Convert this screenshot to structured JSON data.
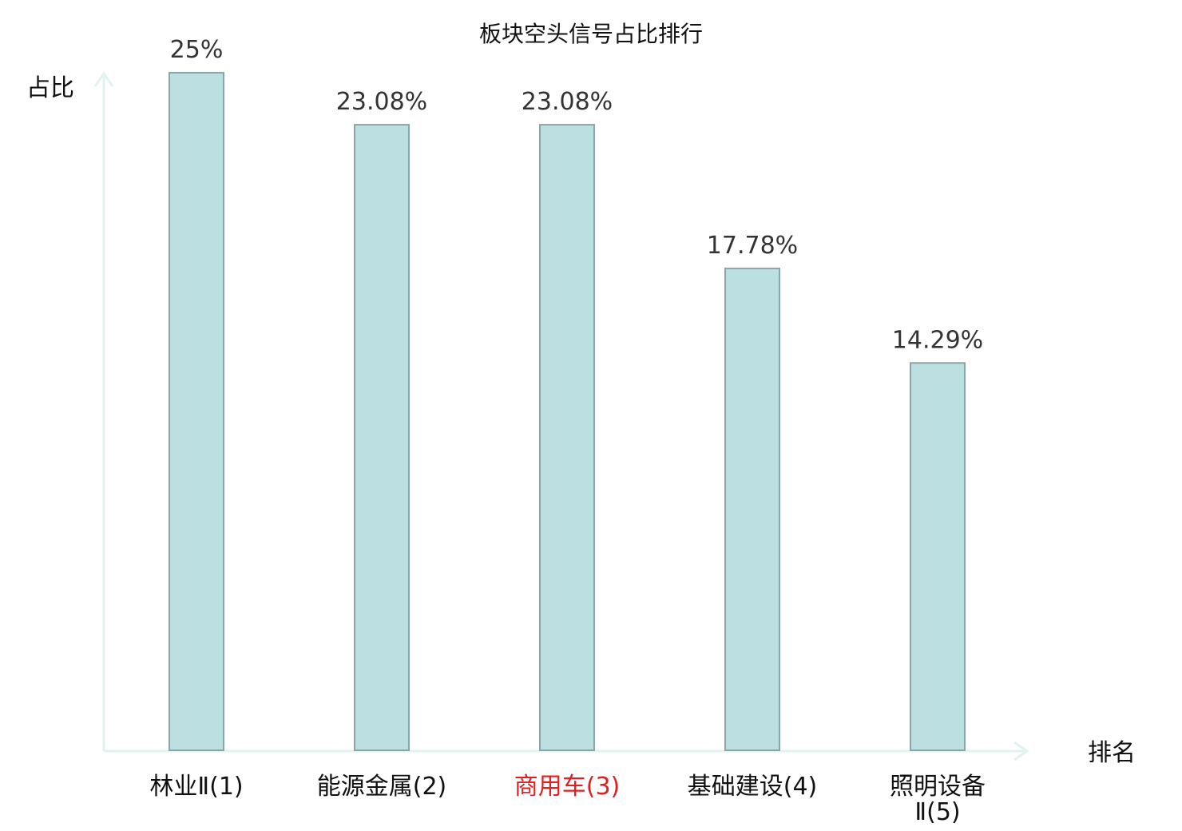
{
  "chart_data": {
    "type": "bar",
    "title": "板块空头信号占比排行",
    "ylabel": "占比",
    "xlabel": "排名",
    "categories": [
      "林业Ⅱ(1)",
      "能源金属(2)",
      "商用车(3)",
      "基础建设(4)",
      "照明设备Ⅱ(5)"
    ],
    "values": [
      25,
      23.08,
      23.08,
      17.78,
      14.29
    ],
    "value_labels": [
      "25%",
      "23.08%",
      "23.08%",
      "17.78%",
      "14.29%"
    ],
    "highlight_index": 2,
    "ylim": [
      0,
      25
    ],
    "grid": false,
    "legend": "none",
    "colors": {
      "bar_fill": "#bce0e1",
      "bar_stroke": "#8aa5a6",
      "axis": "#e0f3f1",
      "highlight_text": "#e02020",
      "text": "#111111",
      "value_text": "#333333"
    }
  }
}
